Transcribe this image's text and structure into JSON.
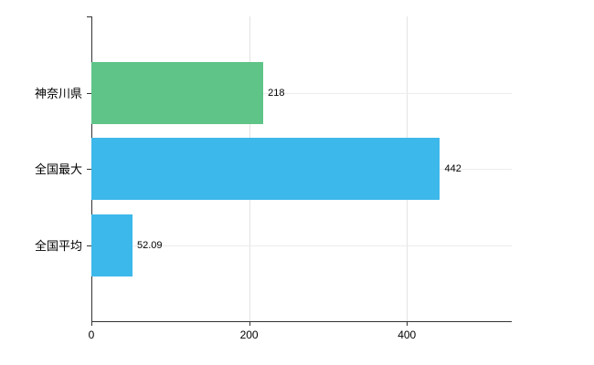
{
  "chart_data": {
    "type": "bar",
    "orientation": "horizontal",
    "title": "",
    "xlabel": "",
    "ylabel": "",
    "categories": [
      "神奈川県",
      "全国最大",
      "全国平均"
    ],
    "values": [
      218,
      442,
      52.09
    ],
    "value_labels": [
      "218",
      "442",
      "52.09"
    ],
    "bar_colors": [
      "#5ec487",
      "#3cb8ea",
      "#3cb8ea"
    ],
    "xlim": [
      0,
      533
    ],
    "xticks": [
      0,
      200,
      400
    ],
    "xtick_labels": [
      "0",
      "200",
      "400"
    ],
    "grid": "on",
    "legend": "none",
    "background_color": "#ffffff",
    "axis_color": "#333333",
    "gridline_color": "#e3e3e3"
  }
}
